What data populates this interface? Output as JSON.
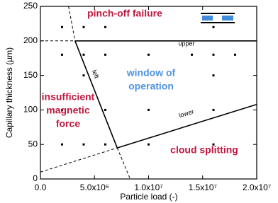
{
  "chart_data": {
    "type": "scatter",
    "x_label": "Particle load (-)",
    "y_label": "Capillary thickness (µm)",
    "xlim": [
      0,
      20000000
    ],
    "ylim": [
      0,
      250
    ],
    "xticks": [
      {
        "value": 0,
        "label": "0.0"
      },
      {
        "value": 5000000,
        "label": "5.0x10⁶"
      },
      {
        "value": 10000000,
        "label": "1.0x10⁷"
      },
      {
        "value": 15000000,
        "label": "1.5x10⁷"
      },
      {
        "value": 20000000,
        "label": "2.0x10⁷"
      }
    ],
    "yticks": [
      0,
      50,
      100,
      150,
      200,
      250
    ],
    "points": {
      "color": "#000000",
      "x": [
        2000000,
        4000000,
        6000000,
        16000000,
        2000000,
        4000000,
        6000000,
        10000000,
        14000000,
        16000000,
        18000000,
        4000000,
        16000000,
        2000000,
        6000000,
        10000000,
        16000000,
        2000000,
        4000000,
        6000000,
        10000000,
        16000000
      ],
      "y": [
        220,
        220,
        220,
        220,
        180,
        180,
        180,
        180,
        180,
        180,
        180,
        150,
        150,
        100,
        100,
        100,
        100,
        50,
        50,
        50,
        50,
        50
      ]
    },
    "lines": [
      {
        "style": "solid",
        "x": [
          3200000,
          20000000
        ],
        "y": [
          200,
          200
        ]
      },
      {
        "style": "dashed",
        "x": [
          0,
          3200000
        ],
        "y": [
          200,
          200
        ]
      },
      {
        "style": "solid",
        "x": [
          3200000,
          7100000
        ],
        "y": [
          200,
          45
        ]
      },
      {
        "style": "dashed",
        "x": [
          2600000,
          3200000
        ],
        "y": [
          250,
          200
        ]
      },
      {
        "style": "dashed",
        "x": [
          7100000,
          8300000
        ],
        "y": [
          45,
          0
        ]
      },
      {
        "style": "solid",
        "x": [
          7100000,
          20000000
        ],
        "y": [
          45,
          108
        ]
      },
      {
        "style": "dashed",
        "x": [
          0,
          7100000
        ],
        "y": [
          10,
          45
        ]
      }
    ],
    "line_labels": [
      "upper",
      "left",
      "lower"
    ],
    "regions": [
      {
        "lines": [
          "pinch-off failure"
        ],
        "color": "#c0173f"
      },
      {
        "lines": [
          "window of",
          "operation"
        ],
        "color": "#4f93dd"
      },
      {
        "lines": [
          "insufficient",
          "magnetic",
          "force"
        ],
        "color": "#c0173f"
      },
      {
        "lines": [
          "cloud splitting"
        ],
        "color": "#c0173f"
      }
    ]
  }
}
